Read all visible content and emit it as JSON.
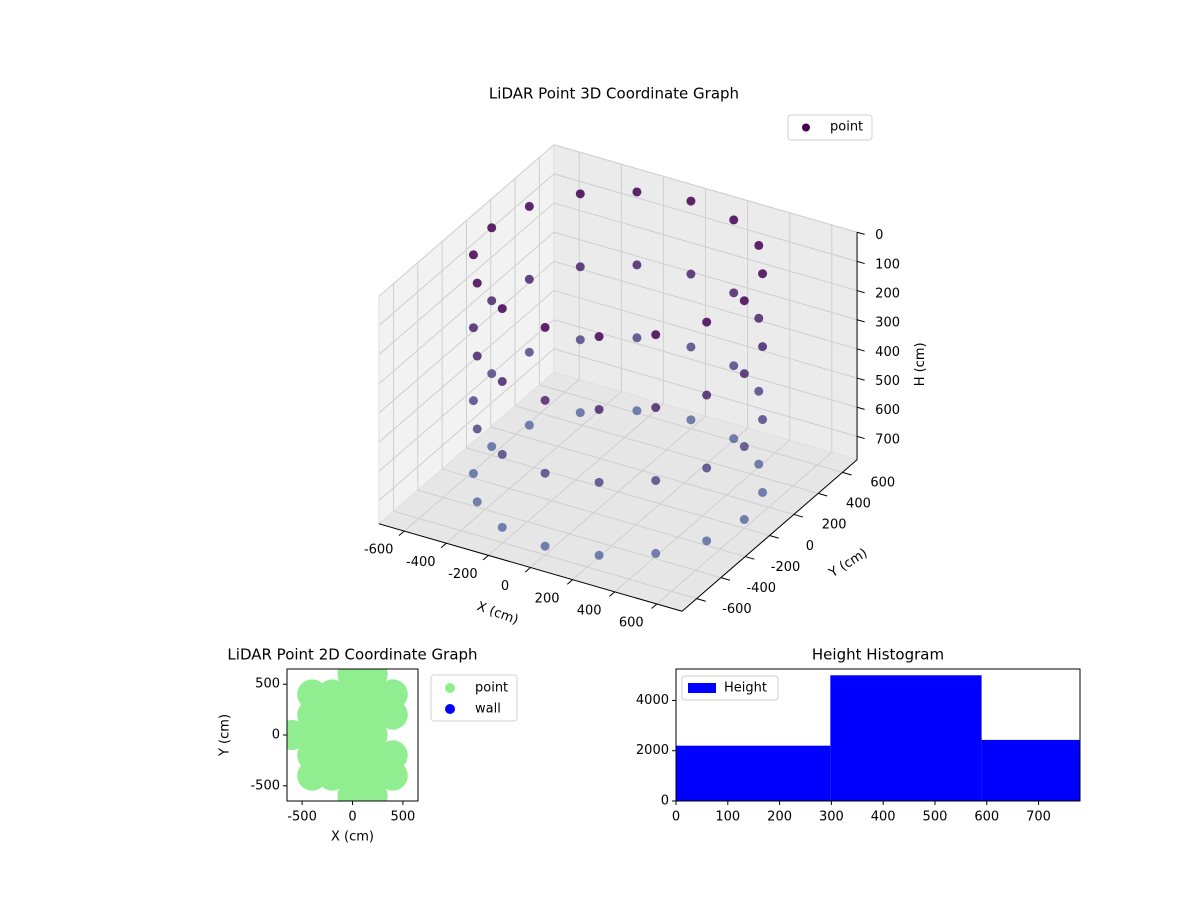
{
  "chart_data": [
    {
      "type": "scatter3d",
      "title": "LiDAR Point 3D Coordinate Graph",
      "xlabel": "X (cm)",
      "ylabel": "Y (cm)",
      "zlabel": "H (cm)",
      "xlim": [
        -720,
        720
      ],
      "ylim": [
        -720,
        720
      ],
      "zlim": [
        0,
        780
      ],
      "z_inverted": true,
      "xticks": [
        -600,
        -400,
        -200,
        0,
        200,
        400,
        600
      ],
      "yticks": [
        -600,
        -400,
        -200,
        0,
        200,
        400,
        600
      ],
      "zticks": [
        0,
        100,
        200,
        300,
        400,
        500,
        600,
        700
      ],
      "colormap": [
        "#440154",
        "#5b6fa3"
      ],
      "legend": "upper right",
      "series": [
        {
          "name": "point",
          "color": "#440154",
          "x": [
            600,
            554,
            424,
            230,
            0,
            -230,
            -424,
            -554,
            -600,
            -554,
            -424,
            -230,
            0,
            230,
            424,
            554,
            600,
            554,
            424,
            230,
            0,
            -230,
            -424,
            -554,
            -600,
            -554,
            -424,
            -230,
            0,
            230,
            424,
            554,
            600,
            554,
            424,
            230,
            0,
            -230,
            -424,
            -554,
            -600,
            -554,
            -424,
            -230,
            0,
            230,
            424,
            554,
            600,
            554,
            424,
            230,
            0,
            -230,
            -424,
            -554,
            -600,
            -554,
            -424,
            -230,
            0,
            230,
            424,
            554
          ],
          "y": [
            0,
            230,
            424,
            554,
            600,
            554,
            424,
            230,
            0,
            -230,
            -424,
            -554,
            -600,
            -554,
            -424,
            -230,
            0,
            230,
            424,
            554,
            600,
            554,
            424,
            230,
            0,
            -230,
            -424,
            -554,
            -600,
            -554,
            -424,
            -230,
            0,
            230,
            424,
            554,
            600,
            554,
            424,
            230,
            0,
            -230,
            -424,
            -554,
            -600,
            -554,
            -424,
            -230,
            0,
            230,
            424,
            554,
            600,
            554,
            424,
            230,
            0,
            -230,
            -424,
            -554,
            -600,
            -554,
            -424,
            -230
          ],
          "h": [
            0,
            0,
            0,
            0,
            0,
            0,
            0,
            0,
            0,
            0,
            0,
            0,
            0,
            0,
            0,
            0,
            250,
            250,
            250,
            250,
            250,
            250,
            250,
            250,
            250,
            250,
            250,
            250,
            250,
            250,
            250,
            250,
            500,
            500,
            500,
            500,
            500,
            500,
            500,
            500,
            500,
            500,
            500,
            500,
            500,
            500,
            500,
            500,
            750,
            750,
            750,
            750,
            750,
            750,
            750,
            750,
            750,
            750,
            750,
            750,
            750,
            750,
            750,
            750
          ]
        }
      ]
    },
    {
      "type": "scatter",
      "title": "LiDAR Point 2D Coordinate Graph",
      "xlabel": "X (cm)",
      "ylabel": "Y (cm)",
      "xlim": [
        -650,
        650
      ],
      "ylim": [
        -650,
        650
      ],
      "xticks": [
        -500,
        0,
        500
      ],
      "yticks": [
        -500,
        0,
        500
      ],
      "legend": "outside right",
      "series": [
        {
          "name": "point",
          "color": "#90ee90",
          "x": [
            0,
            200,
            -400,
            -200,
            0,
            200,
            400,
            -400,
            -200,
            0,
            200,
            400,
            -600,
            -400,
            -200,
            0,
            200,
            -400,
            -200,
            0,
            200,
            400,
            -400,
            -200,
            0,
            200,
            400,
            0,
            200
          ],
          "y": [
            600,
            600,
            400,
            400,
            400,
            400,
            400,
            200,
            200,
            200,
            200,
            200,
            0,
            0,
            0,
            0,
            0,
            -200,
            -200,
            -200,
            -200,
            -200,
            -400,
            -400,
            -400,
            -400,
            -400,
            -600,
            -600
          ]
        },
        {
          "name": "wall",
          "color": "#0000ff",
          "x": [],
          "y": []
        }
      ]
    },
    {
      "type": "histogram",
      "title": "Height Histogram",
      "bins": [
        0,
        298,
        590,
        780
      ],
      "counts": [
        2200,
        5000,
        2430
      ],
      "series_name": "Height",
      "color": "#0000ff",
      "xlim": [
        0,
        780
      ],
      "ylim": [
        0,
        5250
      ],
      "xticks": [
        0,
        100,
        200,
        300,
        400,
        500,
        600,
        700
      ],
      "yticks": [
        0,
        2000,
        4000
      ],
      "legend": "upper left"
    }
  ]
}
